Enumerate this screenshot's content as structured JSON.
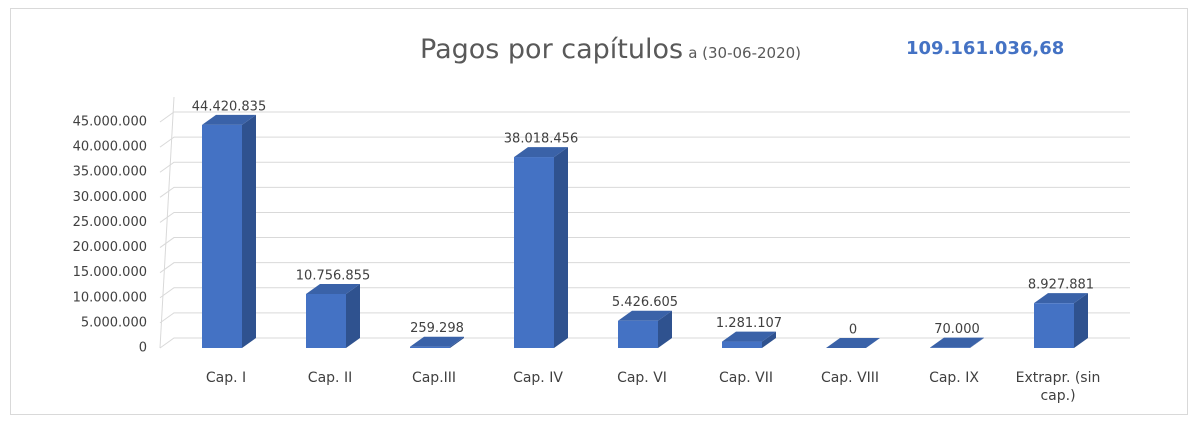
{
  "chart_data": {
    "type": "bar3d",
    "title": "Pagos por capítulos",
    "subtitle": "a (30-06-2020)",
    "annotation": "109.161.036,68",
    "categories": [
      "Cap. I",
      "Cap. II",
      "Cap.III",
      "Cap. IV",
      "Cap. VI",
      "Cap. VII",
      "Cap. VIII",
      "Cap. IX",
      "Extrapr. (sin cap.)"
    ],
    "values": [
      44420835,
      10756855,
      259298,
      38018456,
      5426605,
      1281107,
      0,
      70000,
      8927881
    ],
    "value_labels": [
      "44.420.835",
      "10.756.855",
      "259.298",
      "38.018.456",
      "5.426.605",
      "1.281.107",
      "0",
      "70.000",
      "8.927.881"
    ],
    "color": "#4472c4",
    "ylim": [
      0,
      45000000
    ],
    "yticks": [
      0,
      {
        "value": 5000000,
        "label": "5.000.000"
      },
      {
        "value": 10000000,
        "label": "10.000.000"
      },
      {
        "value": 15000000,
        "label": "15.000.000"
      },
      {
        "value": 20000000,
        "label": "20.000.000"
      },
      {
        "value": 25000000,
        "label": "25.000.000"
      },
      {
        "value": 30000000,
        "label": "30.000.000"
      },
      {
        "value": 35000000,
        "label": "35.000.000"
      },
      {
        "value": 40000000,
        "label": "40.000.000"
      },
      {
        "value": 45000000,
        "label": "45.000.000"
      }
    ],
    "grid": true
  }
}
